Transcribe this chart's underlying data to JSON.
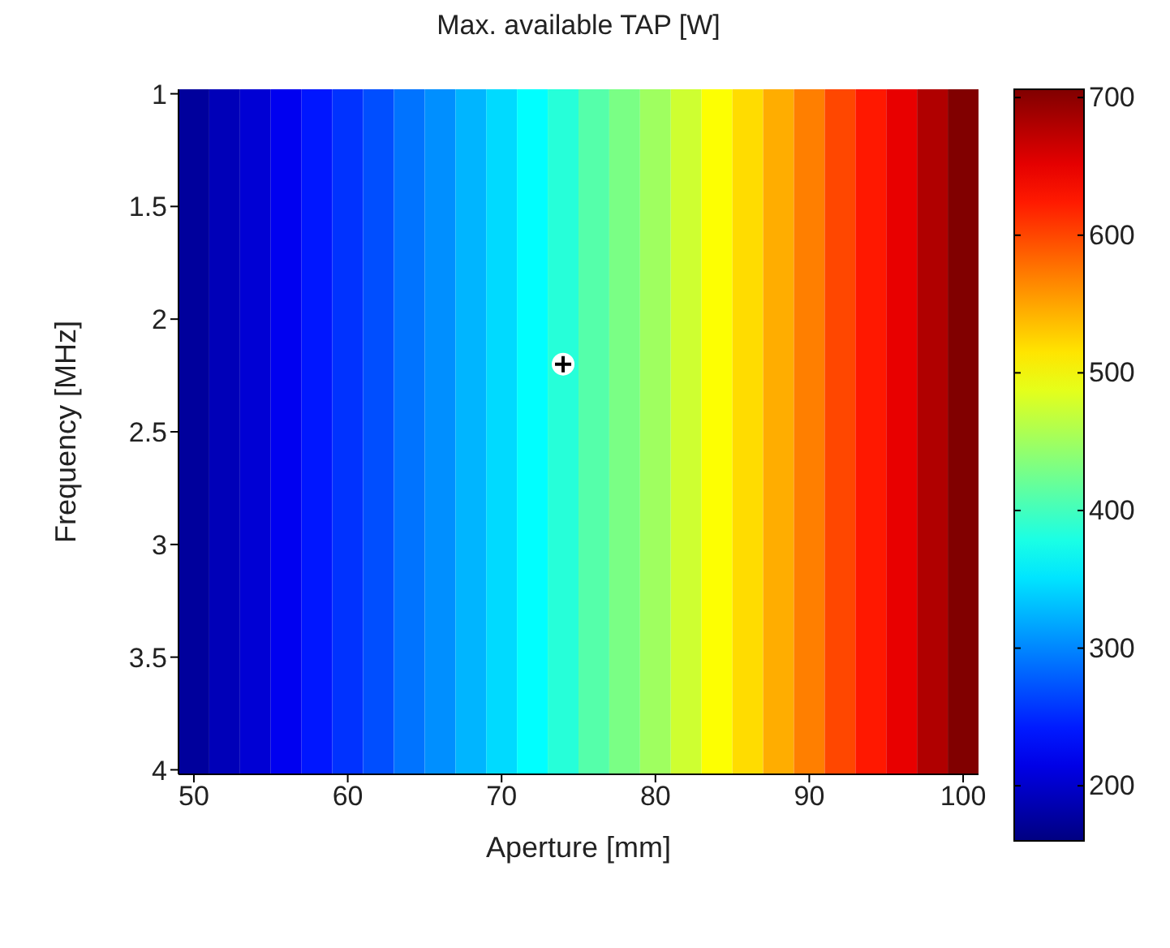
{
  "chart_data": {
    "type": "heatmap",
    "title": "Max. available TAP [W]",
    "xlabel": "Aperture [mm]",
    "ylabel": "Frequency [MHz]",
    "x": [
      50,
      52,
      54,
      56,
      58,
      60,
      62,
      64,
      66,
      68,
      70,
      72,
      74,
      76,
      78,
      80,
      82,
      84,
      86,
      88,
      90,
      92,
      94,
      96,
      98,
      100
    ],
    "cells": [
      [
        175,
        190,
        205,
        220,
        240,
        255,
        270,
        290,
        305,
        325,
        345,
        365,
        385,
        410,
        430,
        450,
        475,
        500,
        520,
        545,
        570,
        600,
        625,
        650,
        680,
        705
      ]
    ],
    "xlim": [
      49,
      101
    ],
    "xticks": [
      50,
      60,
      70,
      80,
      90,
      100
    ],
    "ylim": [
      4.02,
      0.98
    ],
    "yticks": [
      1,
      1.5,
      2,
      2.5,
      3,
      3.5,
      4
    ],
    "clim": [
      160,
      706
    ],
    "cticks": [
      200,
      300,
      400,
      500,
      600,
      700
    ],
    "series": [
      {
        "type": "scatter",
        "color": "#000000",
        "marker": "cross",
        "x": [
          74
        ],
        "values": [
          2.2
        ]
      }
    ]
  }
}
